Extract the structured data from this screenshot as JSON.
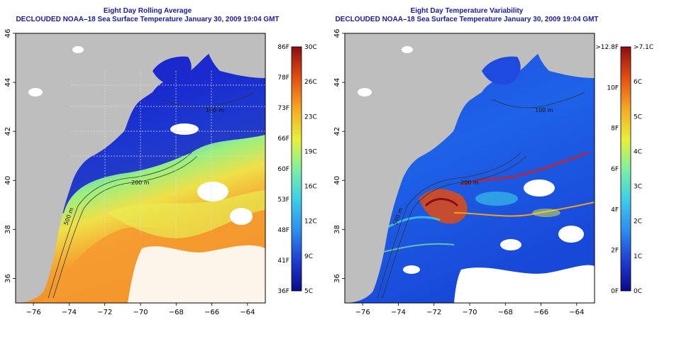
{
  "panels": [
    {
      "title": "Eight Day Rolling Average",
      "subtitle": "DECLOUDED NOAA–18 Sea Surface Temperature January 30, 2009 19:04 GMT",
      "contour_labels": [
        "100 m",
        "200 m",
        "500 m"
      ],
      "colorbar": {
        "left_labels": [
          "86F",
          "78F",
          "73F",
          "66F",
          "60F",
          "53F",
          "48F",
          "41F",
          "36F"
        ],
        "right_labels": [
          "30C",
          "26C",
          "23C",
          "19C",
          "16C",
          "12C",
          "9C",
          "5C"
        ]
      }
    },
    {
      "title": "Eight Day Temperature Variability",
      "subtitle": "DECLOUDED NOAA–18 Sea Surface Temperature January 30, 2009 19:04 GMT",
      "contour_labels": [
        "100 m",
        "200 m",
        "500 m"
      ],
      "colorbar": {
        "left_labels": [
          ">12.8F",
          "10F",
          "8F",
          "6F",
          "4F",
          "2F",
          "0F"
        ],
        "right_labels": [
          ">7.1C",
          "6C",
          "5C",
          "4C",
          "3C",
          "2C",
          "1C",
          "0C"
        ]
      }
    }
  ],
  "axes": {
    "x_ticks": [
      "−76",
      "−74",
      "−72",
      "−70",
      "−68",
      "−66",
      "−64"
    ],
    "y_ticks": [
      "46",
      "44",
      "42",
      "40",
      "38",
      "36"
    ],
    "x_range": [
      -77,
      -63
    ],
    "y_range": [
      35,
      46
    ]
  },
  "colors": {
    "title": "#1a1aa0",
    "land": "#bebebe",
    "cloud": "#ffffff",
    "colormap": [
      "#0a0a8a",
      "#1f3bd0",
      "#2e8ef0",
      "#3ed0e8",
      "#7ef0a0",
      "#e8f03a",
      "#f5a623",
      "#e04a12",
      "#8a0f0f"
    ]
  }
}
